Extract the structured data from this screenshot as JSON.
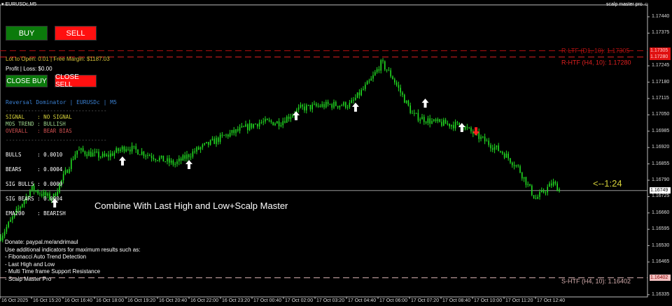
{
  "window": {
    "title": "EURUSDc,M5",
    "indicator_badge": "scalp master pro"
  },
  "trade_panel": {
    "buy": "BUY",
    "sell": "SELL",
    "lot_info": "Lot to Open: 0.01 | Free Margin: $1187.03",
    "profit": "Profit | Loss: $0.00",
    "close_buy": "CLOSE BUY",
    "close_sell": "CLOSE SELL"
  },
  "indicator": {
    "title": "Reversal Dominator | EURUSDc | M5",
    "divider": "--------------------------------",
    "signal": "SIGNAL    : NO SIGNAL",
    "mos_trend": "MOS TREND : BULLISH",
    "overall": "OVERALL   : BEAR BIAS",
    "stats": [
      "BULLS     : 0.0010",
      "BEARS     : 0.0004",
      "SIG BULLS : 0.0009",
      "SIG BEARS : 0.0004",
      "EMA200    : BEARISH"
    ]
  },
  "annotation": "Combine With Last High and Low+Scalp Master",
  "ratio": "<--1:24",
  "notes": [
    "Donate: paypal.me/andrimaul",
    "Use additional indicators for maximum results such as:",
    "- Fibonacci Auto Trend Detection",
    "- Last High and Low",
    "- Multi Time frame Support Resistance",
    "- Scalp Master Pro"
  ],
  "chart_data": {
    "type": "candlestick",
    "symbol": "EURUSDc",
    "timeframe": "M5",
    "y_ticks": [
      "1.17440",
      "1.17375",
      "1.17245",
      "1.17180",
      "1.17115",
      "1.17050",
      "1.16985",
      "1.16920",
      "1.16855",
      "1.16790",
      "1.16725",
      "1.16660",
      "1.16595",
      "1.16530",
      "1.16465",
      "1.16335"
    ],
    "x_ticks": [
      "16 Oct 2025",
      "16 Oct 15:20",
      "16 Oct 16:40",
      "16 Oct 18:00",
      "16 Oct 19:20",
      "16 Oct 20:40",
      "16 Oct 22:00",
      "16 Oct 23:20",
      "17 Oct 00:40",
      "17 Oct 02:00",
      "17 Oct 03:20",
      "17 Oct 04:40",
      "17 Oct 06:00",
      "17 Oct 07:20",
      "17 Oct 08:40",
      "17 Oct 10:00",
      "17 Oct 11:20",
      "17 Oct 12:40"
    ],
    "ylim": [
      1.1631,
      1.17505
    ],
    "price_path": [
      [
        "16 Oct 14:00",
        1.16562
      ],
      [
        "16 Oct 15:20",
        1.16757
      ],
      [
        "16 Oct 16:13",
        1.16715
      ],
      [
        "16 Oct 17:15",
        1.16909
      ],
      [
        "16 Oct 18:27",
        1.16882
      ],
      [
        "16 Oct 19:20",
        1.16923
      ],
      [
        "16 Oct 21:24",
        1.16854
      ],
      [
        "16 Oct 22:18",
        1.16909
      ],
      [
        "16 Oct 23:29",
        1.16965
      ],
      [
        "17 Oct 00:58",
        1.1702
      ],
      [
        "17 Oct 01:51",
        1.1702
      ],
      [
        "17 Oct 02:44",
        1.17076
      ],
      [
        "17 Oct 03:55",
        1.1709
      ],
      [
        "17 Oct 04:49",
        1.1709
      ],
      [
        "17 Oct 05:42",
        1.17187
      ],
      [
        "17 Oct 06:09",
        1.17257
      ],
      [
        "17 Oct 06:36",
        1.17201
      ],
      [
        "17 Oct 07:29",
        1.17048
      ],
      [
        "17 Oct 08:22",
        1.1702
      ],
      [
        "17 Oct 09:33",
        1.17007
      ],
      [
        "17 Oct 10:27",
        1.16951
      ],
      [
        "17 Oct 11:20",
        1.16896
      ],
      [
        "17 Oct 11:56",
        1.1684
      ],
      [
        "17 Oct 12:40",
        1.16715
      ],
      [
        "17 Oct 13:24",
        1.16779
      ],
      [
        "17 Oct 13:42",
        1.16751
      ]
    ],
    "buy_arrows": [
      [
        "16 Oct 16:19",
        1.16701
      ],
      [
        "16 Oct 19:11",
        1.16868
      ],
      [
        "16 Oct 22:00",
        1.16854
      ],
      [
        "17 Oct 02:32",
        1.17048
      ],
      [
        "17 Oct 05:03",
        1.17082
      ],
      [
        "17 Oct 08:00",
        1.17098
      ],
      [
        "17 Oct 09:33",
        1.17001
      ]
    ],
    "sell_arrows": [
      [
        "17 Oct 10:09",
        1.16984
      ]
    ],
    "levels": [
      {
        "label": "R-LTF (D1, 10): 1.17305",
        "price": "1.17305",
        "color": "#b01010"
      },
      {
        "label": "R-HTF (H4, 10): 1.17280",
        "price": "1.17280",
        "color": "#e02020"
      },
      {
        "label": "S-HTF (H4, 10): 1.16402",
        "price": "1.16402",
        "color": "#d8b0b0"
      }
    ],
    "current_price": "1.16749",
    "colors": {
      "candle": "#22dd22",
      "buy_arrow": "#ffffff",
      "sell_arrow": "#ff2020",
      "current_line": "#999999"
    }
  }
}
